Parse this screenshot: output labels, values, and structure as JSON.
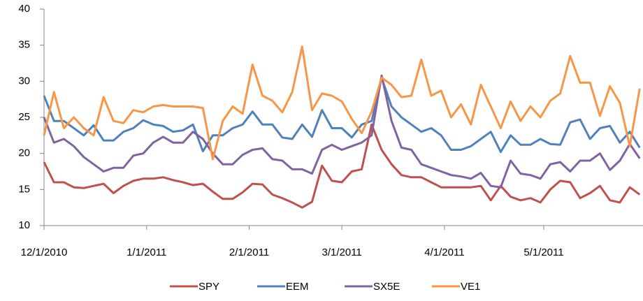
{
  "chart_data": {
    "type": "line",
    "x": [
      "2010-12-01",
      "2010-12-04",
      "2010-12-07",
      "2010-12-10",
      "2010-12-13",
      "2010-12-16",
      "2010-12-19",
      "2010-12-22",
      "2010-12-25",
      "2010-12-28",
      "2010-12-31",
      "2011-01-03",
      "2011-01-06",
      "2011-01-09",
      "2011-01-12",
      "2011-01-15",
      "2011-01-18",
      "2011-01-21",
      "2011-01-24",
      "2011-01-27",
      "2011-01-30",
      "2011-02-02",
      "2011-02-05",
      "2011-02-08",
      "2011-02-11",
      "2011-02-14",
      "2011-02-17",
      "2011-02-20",
      "2011-02-23",
      "2011-02-26",
      "2011-03-01",
      "2011-03-04",
      "2011-03-07",
      "2011-03-10",
      "2011-03-13",
      "2011-03-16",
      "2011-03-19",
      "2011-03-22",
      "2011-03-25",
      "2011-03-28",
      "2011-03-31",
      "2011-04-03",
      "2011-04-06",
      "2011-04-09",
      "2011-04-12",
      "2011-04-15",
      "2011-04-18",
      "2011-04-21",
      "2011-04-24",
      "2011-04-27",
      "2011-04-30",
      "2011-05-03",
      "2011-05-06",
      "2011-05-09",
      "2011-05-12",
      "2011-05-15",
      "2011-05-18",
      "2011-05-21",
      "2011-05-24",
      "2011-05-27",
      "2011-05-30"
    ],
    "series": [
      {
        "name": "SPY",
        "color": "#C0504D",
        "values": [
          18.8,
          16,
          16,
          15.3,
          15.2,
          15.5,
          15.8,
          14.5,
          15.5,
          16.2,
          16.5,
          16.5,
          16.7,
          16.3,
          16,
          15.6,
          15.8,
          14.7,
          13.7,
          13.7,
          14.6,
          15.8,
          15.7,
          14.3,
          13.8,
          13.2,
          12.5,
          13.3,
          18.3,
          16.2,
          16,
          17.5,
          17.8,
          24,
          20.5,
          18.5,
          17,
          16.7,
          16.7,
          16,
          15.3,
          15.3,
          15.3,
          15.3,
          15.5,
          13.5,
          15.5,
          14,
          13.5,
          13.8,
          13.2,
          15,
          16.2,
          16,
          13.8,
          14.5,
          15.5,
          13.5,
          13.2,
          15.3,
          14.3
        ]
      },
      {
        "name": "EEM",
        "color": "#4F81BD",
        "values": [
          28,
          24.5,
          24.5,
          23.5,
          22.5,
          23.9,
          21.8,
          21.8,
          23,
          23.5,
          24.6,
          24,
          23.8,
          23,
          23.2,
          24,
          20.3,
          22.5,
          22.5,
          23.5,
          24,
          25.8,
          24,
          24,
          22.2,
          22,
          24,
          22.3,
          26,
          23.5,
          23.5,
          22.2,
          24,
          24.5,
          30.5,
          26.5,
          25,
          24,
          23,
          23.5,
          22.5,
          20.5,
          20.5,
          21,
          22,
          23,
          20.2,
          22.5,
          21.2,
          21.2,
          22,
          21.3,
          21.2,
          24.3,
          24.7,
          22,
          23.5,
          23.8,
          21.5,
          23,
          20.8
        ]
      },
      {
        "name": "SX5E",
        "color": "#8064A2",
        "values": [
          25,
          21.5,
          22,
          21,
          19.5,
          18.5,
          17.5,
          18,
          18,
          19.7,
          20,
          21.5,
          22.3,
          21.5,
          21.5,
          23,
          22,
          20,
          18.5,
          18.5,
          19.8,
          20.5,
          20.7,
          19.2,
          19,
          17.8,
          17.8,
          17.2,
          20.5,
          21.2,
          20.5,
          21,
          21.5,
          22.5,
          30.8,
          24.5,
          20.8,
          20.5,
          18.5,
          18,
          17.5,
          17,
          16.8,
          16.5,
          17.3,
          15.5,
          15.3,
          19,
          17.2,
          17,
          16.5,
          18.5,
          18.8,
          17.5,
          19,
          19,
          20,
          17.7,
          19,
          21.3,
          19.3
        ]
      },
      {
        "name": "VE1",
        "color": "#F79646",
        "values": [
          22.5,
          28.5,
          23.5,
          25,
          23.5,
          22.5,
          27.8,
          24.5,
          24.2,
          26,
          25.7,
          26.5,
          26.7,
          26.5,
          26.5,
          26.5,
          26.3,
          19.2,
          24.5,
          26.5,
          25.5,
          32.3,
          28,
          27.3,
          25.7,
          28.5,
          34.8,
          26,
          28.3,
          28,
          27.2,
          24.8,
          22.8,
          25.8,
          30.5,
          29.5,
          27.8,
          28,
          33,
          28,
          28.7,
          25,
          26.8,
          24,
          29.5,
          26.5,
          23.5,
          27.2,
          24.5,
          26.5,
          25,
          27.3,
          28.3,
          33.5,
          29.8,
          29.8,
          25.2,
          29.3,
          27,
          21,
          29
        ]
      }
    ],
    "xlim": [
      "2010-12-01",
      "2011-05-31"
    ],
    "xticks": [
      {
        "value": "2010-12-01",
        "label": "12/1/2010"
      },
      {
        "value": "2011-01-01",
        "label": "1/1/2011"
      },
      {
        "value": "2011-02-01",
        "label": "2/1/2011"
      },
      {
        "value": "2011-03-01",
        "label": "3/1/2011"
      },
      {
        "value": "2011-04-01",
        "label": "4/1/2011"
      },
      {
        "value": "2011-05-01",
        "label": "5/1/2011"
      }
    ],
    "ylim": [
      10,
      40
    ],
    "yticks": [
      10,
      15,
      20,
      25,
      30,
      35,
      40
    ],
    "grid": false,
    "legend": "bottom"
  }
}
